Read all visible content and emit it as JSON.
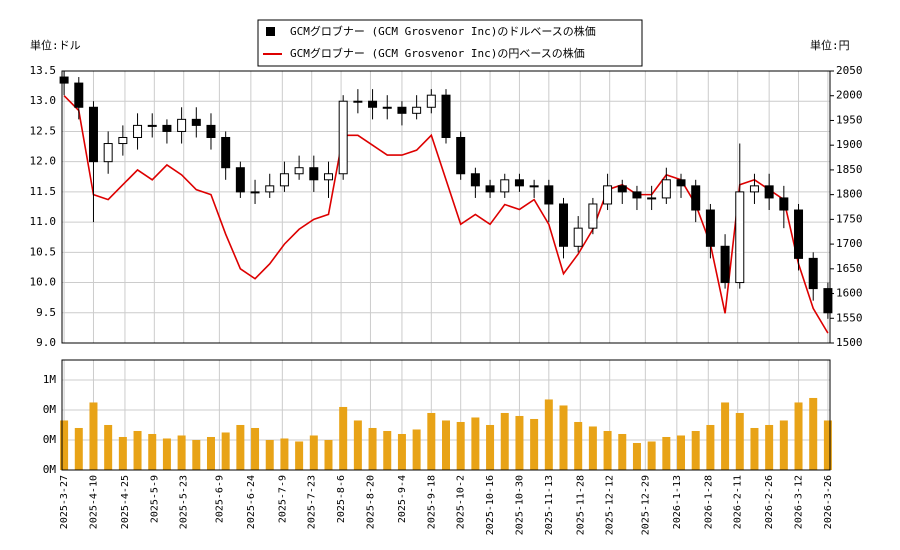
{
  "chart_data": {
    "type": "candlestick",
    "unit_left": "単位:ドル",
    "unit_right": "単位:円",
    "x": [
      "2025-3-27",
      "2025-4-3",
      "2025-4-10",
      "2025-4-17",
      "2025-4-24",
      "2025-5-1",
      "2025-5-8",
      "2025-5-15",
      "2025-5-22",
      "2025-5-29",
      "2025-6-5",
      "2025-6-12",
      "2025-6-19",
      "2025-6-26",
      "2025-7-3",
      "2025-7-10",
      "2025-7-17",
      "2025-7-24",
      "2025-7-31",
      "2025-8-7",
      "2025-8-14",
      "2025-8-21",
      "2025-8-28",
      "2025-9-4",
      "2025-9-11",
      "2025-9-18",
      "2025-9-25",
      "2025-10-2",
      "2025-10-9",
      "2025-10-16",
      "2025-10-23",
      "2025-10-30",
      "2025-11-6",
      "2025-11-13",
      "2025-11-20",
      "2025-11-27",
      "2025-12-4",
      "2025-12-11",
      "2025-12-18",
      "2025-12-25",
      "2026-1-1",
      "2026-1-8",
      "2026-1-15",
      "2026-1-22",
      "2026-1-29",
      "2026-2-5",
      "2026-2-12",
      "2026-2-19",
      "2026-2-26",
      "2026-3-5",
      "2026-3-12",
      "2026-3-19",
      "2026-3-26"
    ],
    "series": [
      {
        "name": "GCMグロブナー (GCM Grosvenor Inc)のドルベースの株価",
        "color": "#000000",
        "open": [
          13.4,
          13.3,
          12.9,
          12.0,
          12.3,
          12.4,
          12.6,
          12.6,
          12.5,
          12.7,
          12.6,
          12.4,
          11.9,
          11.5,
          11.5,
          11.6,
          11.8,
          11.9,
          11.7,
          11.8,
          13.0,
          13.0,
          12.9,
          12.9,
          12.8,
          12.9,
          13.1,
          12.4,
          11.8,
          11.6,
          11.5,
          11.7,
          11.6,
          11.6,
          11.3,
          10.6,
          10.9,
          11.3,
          11.6,
          11.5,
          11.4,
          11.4,
          11.7,
          11.6,
          11.2,
          10.6,
          10.0,
          11.5,
          11.6,
          11.4,
          11.2,
          10.4,
          9.9
        ],
        "high": [
          13.5,
          13.4,
          13.0,
          12.5,
          12.6,
          12.8,
          12.8,
          12.7,
          12.9,
          12.9,
          12.8,
          12.5,
          12.0,
          11.7,
          11.8,
          12.0,
          12.1,
          12.1,
          12.0,
          13.1,
          13.2,
          13.2,
          13.1,
          13.0,
          13.1,
          13.2,
          13.2,
          12.5,
          11.9,
          11.7,
          11.8,
          11.8,
          11.7,
          11.7,
          11.4,
          11.1,
          11.4,
          11.8,
          11.7,
          11.6,
          11.6,
          11.9,
          11.8,
          11.7,
          11.3,
          10.8,
          12.3,
          11.8,
          11.8,
          11.6,
          11.3,
          10.5,
          10.0
        ],
        "low": [
          13.1,
          12.7,
          11.0,
          11.8,
          12.1,
          12.2,
          12.4,
          12.3,
          12.3,
          12.4,
          12.2,
          11.7,
          11.4,
          11.3,
          11.4,
          11.5,
          11.7,
          11.5,
          11.4,
          11.7,
          12.8,
          12.7,
          12.7,
          12.6,
          12.7,
          12.8,
          12.3,
          11.7,
          11.4,
          11.4,
          11.4,
          11.5,
          11.4,
          11.0,
          10.4,
          10.5,
          10.8,
          11.2,
          11.3,
          11.2,
          11.2,
          11.3,
          11.4,
          11.0,
          10.4,
          9.9,
          9.9,
          11.3,
          11.2,
          10.9,
          10.2,
          9.7,
          9.4
        ],
        "close": [
          13.3,
          12.9,
          12.0,
          12.3,
          12.4,
          12.6,
          12.6,
          12.5,
          12.7,
          12.6,
          12.4,
          11.9,
          11.5,
          11.5,
          11.6,
          11.8,
          11.9,
          11.7,
          11.8,
          13.0,
          13.0,
          12.9,
          12.9,
          12.8,
          12.9,
          13.1,
          12.4,
          11.8,
          11.6,
          11.5,
          11.7,
          11.6,
          11.6,
          11.3,
          10.6,
          10.9,
          11.3,
          11.6,
          11.5,
          11.4,
          11.4,
          11.7,
          11.6,
          11.2,
          10.6,
          10.0,
          11.5,
          11.6,
          11.4,
          11.2,
          10.4,
          9.9,
          9.5
        ]
      },
      {
        "name": "GCMグロブナー (GCM Grosvenor Inc)の円ベースの株価",
        "color": "#dd0000",
        "axis": "y2",
        "values": [
          2000,
          1970,
          1800,
          1790,
          1820,
          1850,
          1830,
          1860,
          1840,
          1810,
          1800,
          1720,
          1650,
          1630,
          1660,
          1700,
          1730,
          1750,
          1760,
          1920,
          1920,
          1900,
          1880,
          1880,
          1890,
          1920,
          1830,
          1740,
          1760,
          1740,
          1780,
          1770,
          1790,
          1740,
          1640,
          1680,
          1730,
          1810,
          1820,
          1800,
          1800,
          1840,
          1830,
          1780,
          1700,
          1560,
          1820,
          1830,
          1810,
          1790,
          1660,
          1570,
          1520
        ]
      }
    ],
    "volume": {
      "color": "#e8a317",
      "values": [
        330000,
        280000,
        450000,
        300000,
        220000,
        260000,
        240000,
        210000,
        230000,
        200000,
        220000,
        250000,
        300000,
        280000,
        200000,
        210000,
        190000,
        230000,
        200000,
        420000,
        330000,
        280000,
        260000,
        240000,
        270000,
        380000,
        330000,
        320000,
        350000,
        300000,
        380000,
        360000,
        340000,
        470000,
        430000,
        320000,
        290000,
        260000,
        240000,
        180000,
        190000,
        220000,
        230000,
        260000,
        300000,
        450000,
        380000,
        280000,
        300000,
        330000,
        450000,
        480000,
        330000
      ],
      "ylim": [
        0,
        733000
      ],
      "yticks": [
        {
          "value": 0,
          "label": "0M"
        },
        {
          "value": 200000,
          "label": "0M"
        },
        {
          "value": 400000,
          "label": "0M"
        },
        {
          "value": 600000,
          "label": "1M"
        }
      ]
    },
    "xlim": [
      "2025-3-26",
      "2026-3-27"
    ],
    "xticks": [
      "2025-3-27",
      "2025-4-10",
      "2025-4-25",
      "2025-5-9",
      "2025-5-23",
      "2025-6-9",
      "2025-6-24",
      "2025-7-9",
      "2025-7-23",
      "2025-8-6",
      "2025-8-20",
      "2025-9-4",
      "2025-9-18",
      "2025-10-2",
      "2025-10-16",
      "2025-10-30",
      "2025-11-13",
      "2025-11-28",
      "2025-12-12",
      "2025-12-29",
      "2026-1-13",
      "2026-1-28",
      "2026-2-11",
      "2026-2-26",
      "2026-3-12",
      "2026-3-26"
    ],
    "ylim": [
      9,
      13.5
    ],
    "yticks": [
      {
        "value": 9,
        "label": "9.0"
      },
      9.5,
      {
        "value": 10,
        "label": "10.0"
      },
      10.5,
      {
        "value": 11,
        "label": "11.0"
      },
      11.5,
      {
        "value": 12,
        "label": "12.0"
      },
      12.5,
      {
        "value": 13,
        "label": "13.0"
      },
      13.5
    ],
    "y2lim": [
      1500,
      2050
    ],
    "y2ticks": [
      1500,
      1550,
      1600,
      1650,
      1700,
      1750,
      1800,
      1850,
      1900,
      1950,
      2000,
      2050
    ],
    "grid": true
  }
}
